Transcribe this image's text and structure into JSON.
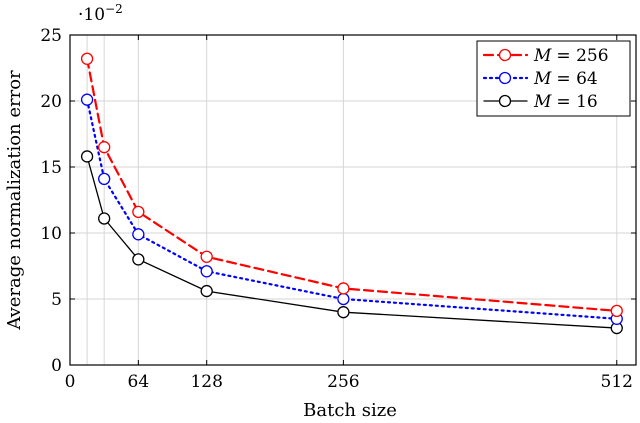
{
  "chart_data": {
    "type": "line",
    "xlabel": "Batch size",
    "ylabel": "Average normalization error",
    "y_scale_label": "·10",
    "y_scale_exponent": "−2",
    "xlim": [
      0,
      530
    ],
    "ylim": [
      0,
      25
    ],
    "xticks": [
      0,
      64,
      128,
      256,
      512
    ],
    "yticks": [
      0,
      5,
      10,
      15,
      20,
      25
    ],
    "grid": true,
    "legend_position": "top-right",
    "series": [
      {
        "name": "M = 256",
        "legend_var": "M",
        "legend_val": "= 256",
        "color": "#ff0000",
        "line_style": "dashed",
        "marker": "open-circle",
        "x": [
          16,
          32,
          64,
          128,
          256,
          512
        ],
        "values": [
          23.2,
          16.5,
          11.6,
          8.2,
          5.8,
          4.1
        ]
      },
      {
        "name": "M = 64",
        "legend_var": "M",
        "legend_val": "= 64",
        "color": "#0000ff",
        "line_style": "dotted",
        "marker": "open-circle",
        "x": [
          16,
          32,
          64,
          128,
          256,
          512
        ],
        "values": [
          20.1,
          14.1,
          9.9,
          7.1,
          5.0,
          3.5
        ]
      },
      {
        "name": "M = 16",
        "legend_var": "M",
        "legend_val": "= 16",
        "color": "#000000",
        "line_style": "solid",
        "marker": "open-circle",
        "x": [
          16,
          32,
          64,
          128,
          256,
          512
        ],
        "values": [
          15.8,
          11.1,
          8.0,
          5.6,
          4.0,
          2.8
        ]
      }
    ]
  }
}
